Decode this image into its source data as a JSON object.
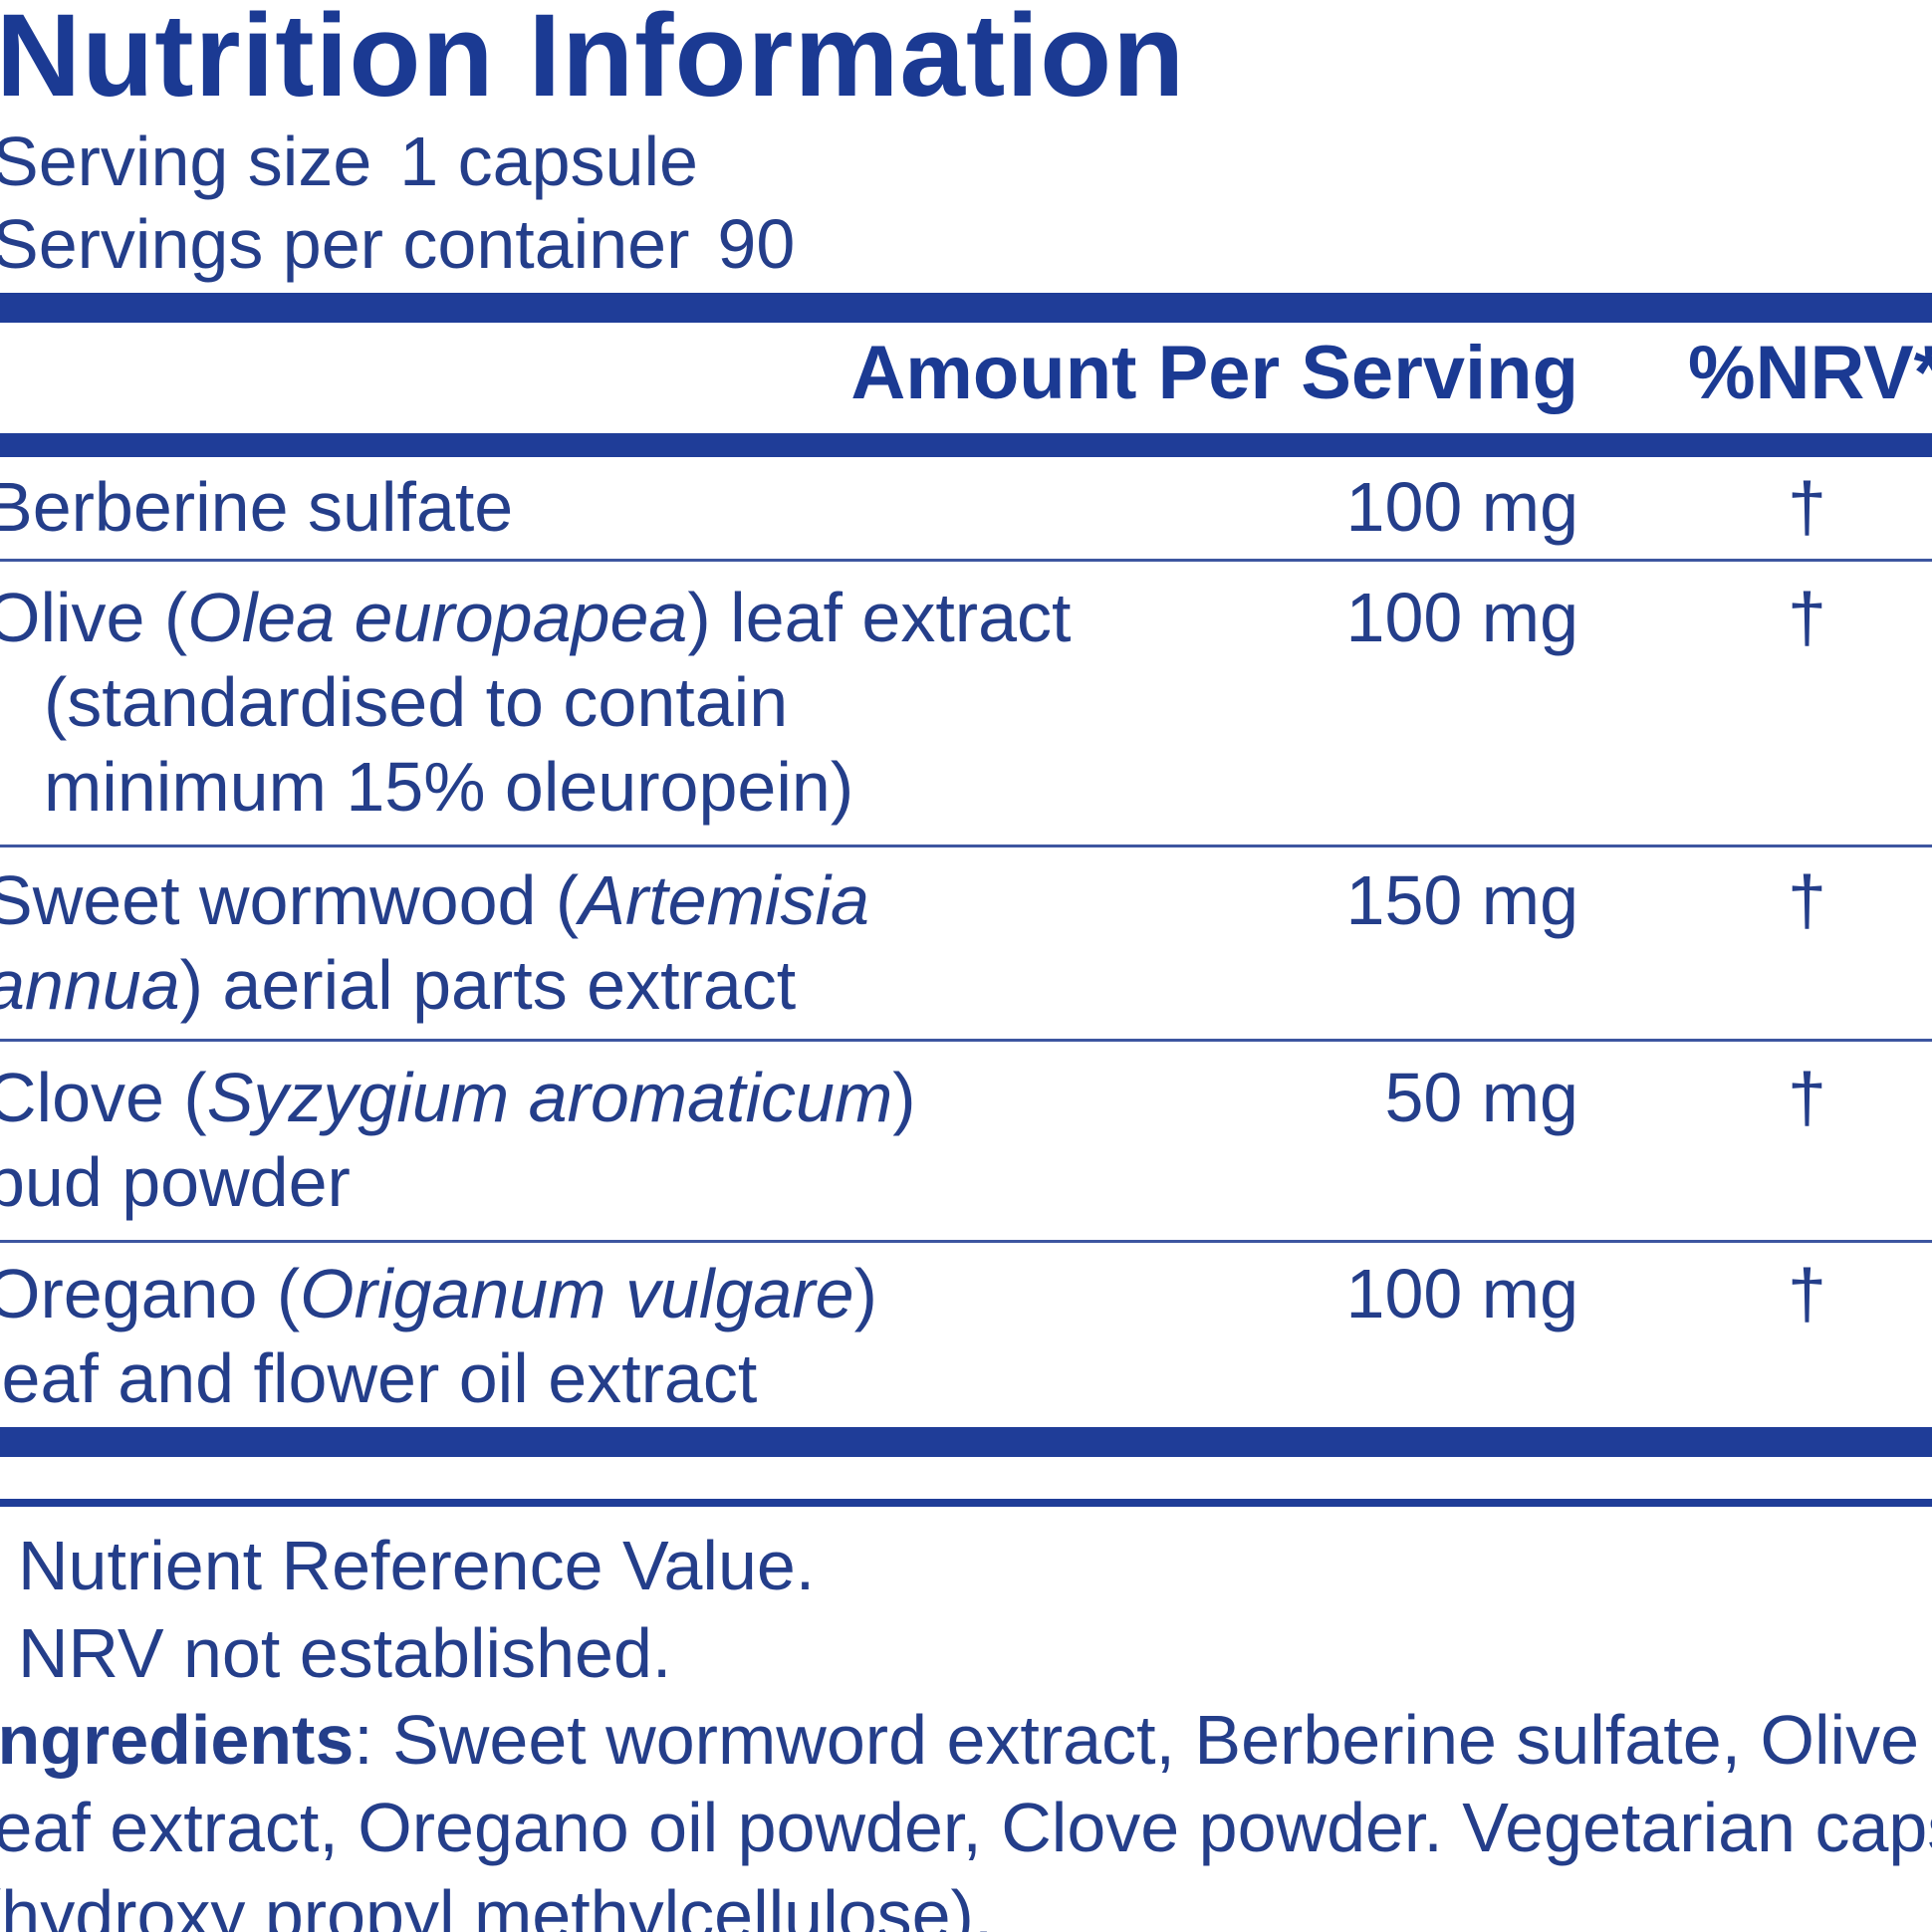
{
  "label": {
    "title": "Nutrition Information",
    "serving_size_label": "Serving size",
    "serving_size_value": "1 capsule",
    "servings_label": "Servings per container",
    "servings_value": "90"
  },
  "table": {
    "header_amount": "Amount Per Serving",
    "header_nrv": "%NRV*",
    "rows": [
      {
        "name": "Berberine sulfate",
        "amount": "100 mg",
        "nrv": "†"
      },
      {
        "name_pre": "Olive (",
        "name_italic": "Olea europapea",
        "name_post": ") leaf extract",
        "line2": "(standardised to contain",
        "line3": "minimum 15% oleuropein)",
        "amount": "100 mg",
        "nrv": "†"
      },
      {
        "name_pre": "Sweet wormwood (",
        "name_italic": "Artemisia",
        "line2_italic": "annua",
        "line2_post": ") aerial parts extract",
        "amount": "150 mg",
        "nrv": "†"
      },
      {
        "name_pre": "Clove (",
        "name_italic": "Syzygium aromaticum",
        "name_post": ")",
        "line2": "bud powder",
        "amount": "50 mg",
        "nrv": "†"
      },
      {
        "name_pre": "Oregano (",
        "name_italic": "Origanum vulgare",
        "name_post": ")",
        "line2": "leaf and flower oil extract",
        "amount": "100 mg",
        "nrv": "†"
      }
    ]
  },
  "footnotes": {
    "nrv_note": "Nutrient Reference Value.",
    "dagger_note": "NRV not established.",
    "ingredients_label": "Ingredients",
    "ingredients_line1": ": Sweet wormword extract, Berberine sulfate, Olive",
    "ingredients_line2": "leaf extract, Oregano oil powder, Clove powder. Vegetarian capsule",
    "ingredients_line3": "(hydroxy propyl methylcellulose)."
  },
  "colors": {
    "text": "#243e8a",
    "accent": "#1f3d98"
  }
}
